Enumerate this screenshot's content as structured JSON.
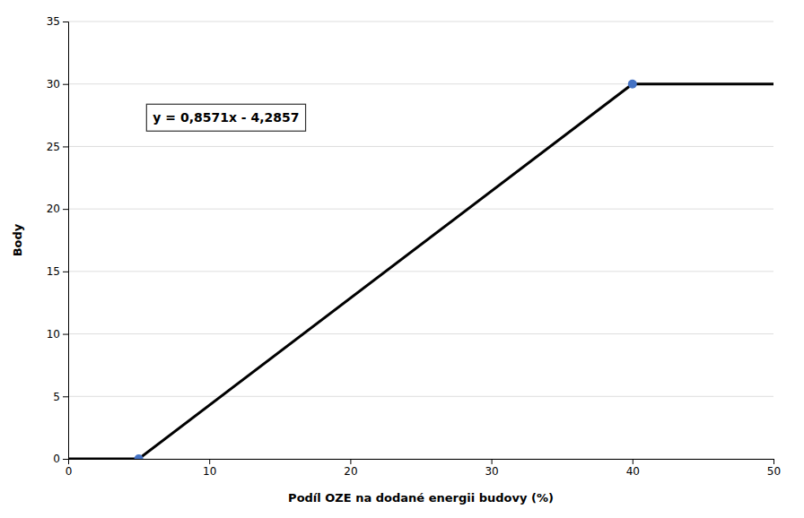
{
  "chart_data": {
    "type": "line",
    "xlabel": "Podíl OZE na dodané energii budovy (%)",
    "ylabel": "Body",
    "annotation": "y = 0,8571x - 4,2857",
    "series": [
      {
        "type": "line",
        "color": "#000000",
        "x": [
          0,
          5,
          40,
          50
        ],
        "values": [
          0,
          0,
          30,
          30
        ]
      },
      {
        "type": "scatter",
        "color": "#4472C4",
        "marker": "circle",
        "x": [
          5,
          40
        ],
        "values": [
          0,
          30
        ]
      }
    ],
    "xlim": [
      0,
      50
    ],
    "ylim": [
      0,
      35
    ],
    "xticks": [
      0,
      10,
      20,
      30,
      40,
      50
    ],
    "yticks": [
      0,
      5,
      10,
      15,
      20,
      25,
      30,
      35
    ],
    "grid": "y"
  }
}
